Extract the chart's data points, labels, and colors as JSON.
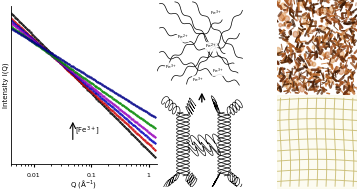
{
  "fig_width": 3.57,
  "fig_height": 1.89,
  "dpi": 100,
  "saxs_colors": [
    "#000000",
    "#cc0000",
    "#0000bb",
    "#9900bb",
    "#008800",
    "#000088"
  ],
  "saxs_log_offsets": [
    0.8,
    2.0,
    4.5,
    10.0,
    32.0,
    130.0
  ],
  "saxs_slopes": [
    -3.4,
    -3.1,
    -2.9,
    -2.7,
    -2.4,
    -2.1
  ],
  "saxs_flat_Q": [
    0.12,
    0.1,
    0.09,
    0.08,
    0.07,
    0.055
  ],
  "saxs_flat_vals": [
    0.04,
    0.09,
    0.18,
    0.38,
    0.85,
    2.2
  ],
  "xlabel": "Q (Å⁻¹)",
  "ylabel": "Intensity I(Q)",
  "x_ticks": [
    0.01,
    0.1,
    1
  ],
  "x_tick_labels": [
    "0.01",
    "0.1",
    "1"
  ],
  "arrow_annotation": "[Fe³⁺]",
  "background": "#ffffff"
}
